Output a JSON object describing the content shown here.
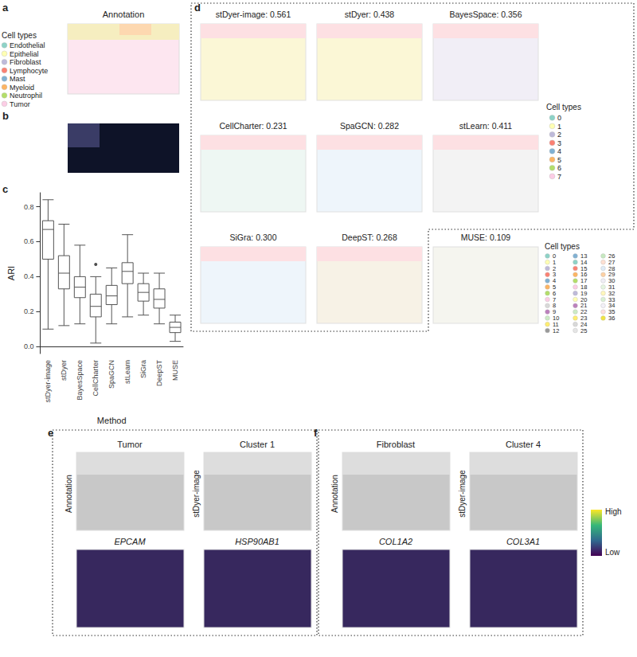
{
  "chart_data": {
    "type": "boxplot",
    "letter": "c",
    "x_label": "Method",
    "y_label": "ARI",
    "categories": [
      "stDyer-image",
      "stDyer",
      "BayesSpace",
      "CellCharter",
      "SpaGCN",
      "stLearn",
      "SiGra",
      "DeepST",
      "MUSE"
    ],
    "values": [
      [
        0.1,
        0.5,
        0.67,
        0.72,
        0.84
      ],
      [
        0.12,
        0.33,
        0.42,
        0.52,
        0.7
      ],
      [
        0.13,
        0.28,
        0.34,
        0.4,
        0.58
      ],
      [
        0.02,
        0.17,
        0.23,
        0.3,
        0.4
      ],
      [
        0.13,
        0.24,
        0.29,
        0.35,
        0.45
      ],
      [
        0.17,
        0.36,
        0.43,
        0.48,
        0.64
      ],
      [
        0.18,
        0.26,
        0.31,
        0.36,
        0.42
      ],
      [
        0.13,
        0.22,
        0.27,
        0.33,
        0.42
      ],
      [
        0.03,
        0.08,
        0.11,
        0.14,
        0.18
      ]
    ],
    "outliers": [
      {
        "category": "CellCharter",
        "value": 0.47
      }
    ],
    "ylim": [
      -0.04,
      0.88
    ],
    "yticks": [
      {
        "value": 0,
        "label": "0.0"
      },
      0.2,
      0.4,
      0.6,
      0.8
    ],
    "grid": false
  },
  "panels": {
    "a": {
      "letter": "a",
      "title": "Annotation",
      "legend_title": "Cell types",
      "legend": [
        {
          "name": "Endothelial",
          "color": "#8dd3c7"
        },
        {
          "name": "Epithelial",
          "color": "#ffffb3"
        },
        {
          "name": "Fibroblast",
          "color": "#bebada"
        },
        {
          "name": "Lymphocyte",
          "color": "#fb8072"
        },
        {
          "name": "Mast",
          "color": "#80b1d3"
        },
        {
          "name": "Myeloid",
          "color": "#fdb462"
        },
        {
          "name": "Neutrophil",
          "color": "#b3de69"
        },
        {
          "name": "Tumor",
          "color": "#fccde5"
        }
      ]
    },
    "b": {
      "letter": "b"
    },
    "d": {
      "letter": "d",
      "maps": [
        "stDyer-image: 0.561",
        "stDyer: 0.438",
        "BayesSpace: 0.356",
        "CellCharter: 0.231",
        "SpaGCN: 0.282",
        "stLearn: 0.411",
        "SiGra: 0.300",
        "DeepST: 0.268"
      ],
      "legend_title": "Cell types",
      "legend": [
        {
          "name": "0",
          "color": "#8dd3c7"
        },
        {
          "name": "1",
          "color": "#ffffb3"
        },
        {
          "name": "2",
          "color": "#bebada"
        },
        {
          "name": "3",
          "color": "#fb8072"
        },
        {
          "name": "4",
          "color": "#80b1d3"
        },
        {
          "name": "5",
          "color": "#fdb462"
        },
        {
          "name": "6",
          "color": "#b3de69"
        },
        {
          "name": "7",
          "color": "#fccde5"
        }
      ],
      "extra_map": "MUSE: 0.109",
      "extra_legend_title": "Cell types",
      "extra_legend": [
        {
          "name": "0",
          "color": "#8dd3c7"
        },
        {
          "name": "1",
          "color": "#ffffb3"
        },
        {
          "name": "2",
          "color": "#bebada"
        },
        {
          "name": "3",
          "color": "#fb8072"
        },
        {
          "name": "4",
          "color": "#80b1d3"
        },
        {
          "name": "5",
          "color": "#fdb462"
        },
        {
          "name": "6",
          "color": "#b3de69"
        },
        {
          "name": "7",
          "color": "#fccde5"
        },
        {
          "name": "8",
          "color": "#d9d9d9"
        },
        {
          "name": "9",
          "color": "#bc80bd"
        },
        {
          "name": "10",
          "color": "#ccebc5"
        },
        {
          "name": "11",
          "color": "#ffed6f"
        },
        {
          "name": "12",
          "color": "#999999"
        },
        {
          "name": "13",
          "color": "#80b1d3"
        },
        {
          "name": "14",
          "color": "#8dd3c7"
        },
        {
          "name": "15",
          "color": "#fb8072"
        },
        {
          "name": "16",
          "color": "#fdb462"
        },
        {
          "name": "17",
          "color": "#b3de69"
        },
        {
          "name": "18",
          "color": "#fccde5"
        },
        {
          "name": "19",
          "color": "#bebada"
        },
        {
          "name": "20",
          "color": "#ffffb3"
        },
        {
          "name": "21",
          "color": "#bc80bd"
        },
        {
          "name": "22",
          "color": "#ccebc5"
        },
        {
          "name": "23",
          "color": "#ffed6f"
        },
        {
          "name": "24",
          "color": "#d9d9d9"
        },
        {
          "name": "25",
          "color": "#e5e5e5"
        },
        {
          "name": "26",
          "color": "#c7e9c0"
        },
        {
          "name": "27",
          "color": "#fee0d2"
        },
        {
          "name": "28",
          "color": "#deebf7"
        },
        {
          "name": "29",
          "color": "#fdd0a2"
        },
        {
          "name": "30",
          "color": "#efedf5"
        },
        {
          "name": "31",
          "color": "#e5f5e0"
        },
        {
          "name": "32",
          "color": "#fff7bc"
        },
        {
          "name": "33",
          "color": "#d9f0d3"
        },
        {
          "name": "34",
          "color": "#f2f0f7"
        },
        {
          "name": "35",
          "color": "#fde0dd"
        },
        {
          "name": "36",
          "color": "#f0e442"
        }
      ]
    },
    "e": {
      "letter": "e",
      "row_labels": [
        "Annotation",
        "stDyer-image"
      ],
      "titles": [
        "Tumor",
        "Cluster 1"
      ],
      "genes": [
        "EPCAM",
        "HSP90AB1"
      ]
    },
    "f": {
      "letter": "f",
      "row_labels": [
        "Annotation",
        "stDyer-image"
      ],
      "titles": [
        "Fibroblast",
        "Cluster 4"
      ],
      "genes": [
        "COL1A2",
        "COL3A1"
      ]
    },
    "colorbar": {
      "high": "High",
      "low": "Low"
    }
  }
}
